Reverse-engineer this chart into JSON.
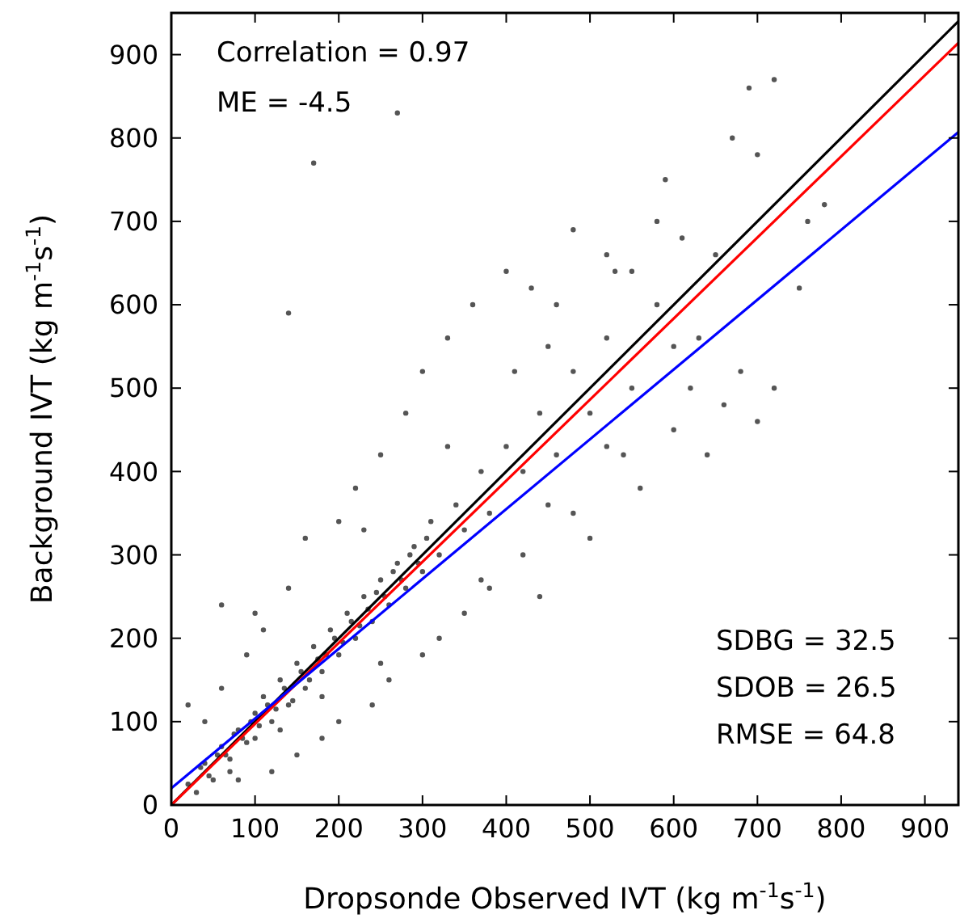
{
  "chart_data": {
    "type": "scatter",
    "xlabel": "Dropsonde Observed IVT (kg m$^{-1}$s$^{-1}$)",
    "ylabel": "Background IVT (kg m$^{-1}$s$^{-1}$)",
    "xlim": [
      0,
      940
    ],
    "ylim": [
      0,
      950
    ],
    "xticks": [
      0,
      100,
      200,
      300,
      400,
      500,
      600,
      700,
      800,
      900
    ],
    "yticks": [
      0,
      100,
      200,
      300,
      400,
      500,
      600,
      700,
      800,
      900
    ],
    "grid": false,
    "annotations": [
      "Correlation = 0.97",
      "ME = -4.5",
      "SDBG = 32.5",
      "SDOB = 26.5",
      "RMSE = 64.8"
    ],
    "series": [
      {
        "marker": "circle",
        "color": "#555555",
        "x": [
          35,
          45,
          55,
          65,
          75,
          85,
          95,
          105,
          115,
          125,
          135,
          145,
          155,
          165,
          175,
          185,
          195,
          205,
          215,
          225,
          235,
          245,
          255,
          265,
          275,
          285,
          295,
          305,
          20,
          30,
          40,
          50,
          60,
          70,
          80,
          90,
          100,
          100,
          110,
          120,
          130,
          140,
          150,
          160,
          170,
          180,
          190,
          200,
          210,
          220,
          230,
          240,
          250,
          260,
          270,
          280,
          290,
          300,
          310,
          320,
          340,
          350,
          370,
          380,
          400,
          420,
          440,
          460,
          480,
          500,
          520,
          550,
          580,
          600,
          40,
          60,
          80,
          100,
          120,
          140,
          150,
          160,
          180,
          200,
          200,
          220,
          240,
          250,
          260,
          280,
          300,
          300,
          320,
          330,
          350,
          360,
          380,
          400,
          420,
          440,
          450,
          480,
          500,
          520,
          540,
          560,
          580,
          600,
          620,
          640,
          660,
          680,
          700,
          720,
          650,
          670,
          690,
          720,
          760,
          780,
          590,
          530,
          480,
          430,
          270,
          170,
          140,
          60,
          20,
          110,
          90,
          230,
          330,
          410,
          460,
          550,
          610,
          700,
          750,
          630,
          370,
          450,
          520,
          250,
          180,
          130,
          70
        ],
        "values": [
          45,
          35,
          60,
          60,
          85,
          80,
          100,
          95,
          120,
          115,
          140,
          125,
          160,
          150,
          175,
          180,
          200,
          195,
          220,
          215,
          235,
          255,
          250,
          280,
          270,
          300,
          290,
          320,
          25,
          15,
          50,
          30,
          70,
          55,
          90,
          75,
          110,
          80,
          130,
          100,
          150,
          120,
          170,
          140,
          190,
          160,
          210,
          180,
          230,
          200,
          250,
          220,
          270,
          240,
          290,
          260,
          310,
          280,
          340,
          300,
          360,
          330,
          400,
          350,
          430,
          400,
          470,
          420,
          520,
          470,
          560,
          500,
          600,
          550,
          100,
          140,
          30,
          230,
          40,
          260,
          60,
          320,
          80,
          340,
          100,
          380,
          120,
          420,
          150,
          470,
          180,
          520,
          200,
          560,
          230,
          600,
          260,
          640,
          300,
          250,
          550,
          350,
          320,
          660,
          420,
          380,
          700,
          450,
          500,
          420,
          480,
          520,
          460,
          500,
          660,
          800,
          860,
          870,
          700,
          720,
          750,
          640,
          690,
          620,
          830,
          770,
          590,
          240,
          120,
          210,
          180,
          330,
          430,
          520,
          600,
          640,
          680,
          780,
          620,
          560,
          270,
          360,
          430,
          170,
          130,
          90,
          40
        ]
      },
      {
        "type": "line",
        "marker": "none",
        "color": "#000000",
        "x": [
          0,
          940
        ],
        "values": [
          0,
          940
        ]
      },
      {
        "type": "line",
        "marker": "none",
        "color": "#ff0000",
        "x": [
          0,
          940
        ],
        "values": [
          0,
          914
        ]
      },
      {
        "type": "line",
        "marker": "none",
        "color": "#0000ff",
        "x": [
          0,
          940
        ],
        "values": [
          20,
          807
        ]
      }
    ]
  }
}
